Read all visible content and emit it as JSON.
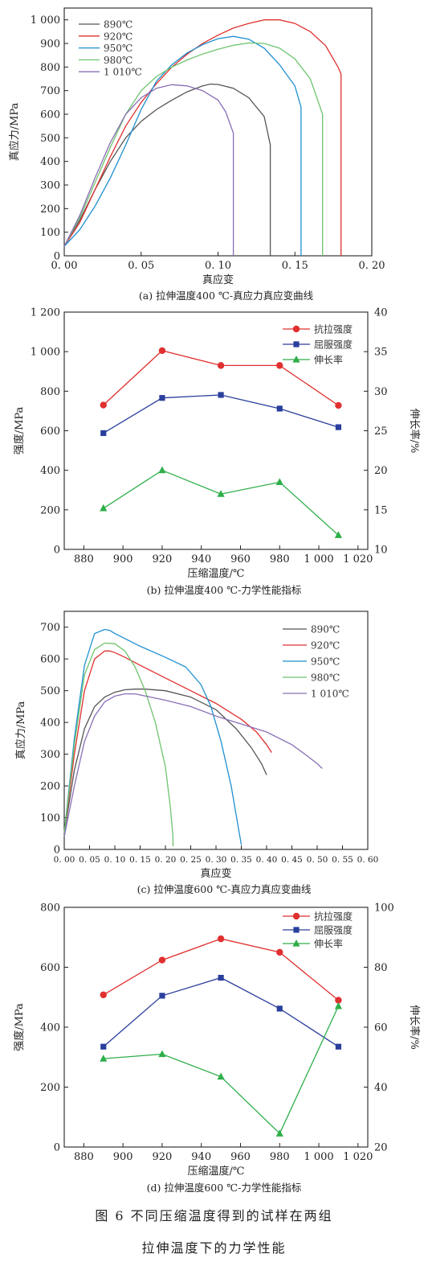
{
  "figure_caption_line1": "图 6 不同压缩温度得到的试样在两组",
  "figure_caption_line2": "拉伸温度下的力学性能",
  "chart_data": [
    {
      "type": "line",
      "caption": "(a) 拉伸温度400 ℃-真应力真应变曲线",
      "xlabel": "真应变",
      "ylabel": "真应力/MPa",
      "xlim": [
        0,
        0.2
      ],
      "ylim": [
        0,
        1050
      ],
      "xticks": [
        0.0,
        0.05,
        0.1,
        0.15,
        0.2
      ],
      "xtick_labels": [
        "0. 00",
        "0. 05",
        "0. 10",
        "0. 15",
        "0. 20"
      ],
      "yticks": [
        0,
        100,
        200,
        300,
        400,
        500,
        600,
        700,
        800,
        900,
        1000
      ],
      "ytick_labels": [
        "0",
        "100",
        "200",
        "300",
        "400",
        "500",
        "600",
        "700",
        "800",
        "900",
        "1 000"
      ],
      "legend_position": "top-left",
      "series": [
        {
          "name": "890℃",
          "color": "#555555",
          "points": [
            [
              0,
              40
            ],
            [
              0.01,
              150
            ],
            [
              0.02,
              280
            ],
            [
              0.03,
              400
            ],
            [
              0.04,
              500
            ],
            [
              0.05,
              570
            ],
            [
              0.06,
              620
            ],
            [
              0.07,
              660
            ],
            [
              0.08,
              695
            ],
            [
              0.09,
              720
            ],
            [
              0.095,
              728
            ],
            [
              0.1,
              726
            ],
            [
              0.11,
              710
            ],
            [
              0.12,
              670
            ],
            [
              0.13,
              590
            ],
            [
              0.134,
              470
            ],
            [
              0.134,
              0
            ]
          ]
        },
        {
          "name": "920℃",
          "color": "#e03030",
          "points": [
            [
              0,
              40
            ],
            [
              0.01,
              140
            ],
            [
              0.02,
              280
            ],
            [
              0.03,
              420
            ],
            [
              0.04,
              550
            ],
            [
              0.05,
              650
            ],
            [
              0.06,
              730
            ],
            [
              0.07,
              800
            ],
            [
              0.08,
              855
            ],
            [
              0.09,
              900
            ],
            [
              0.1,
              935
            ],
            [
              0.11,
              965
            ],
            [
              0.12,
              985
            ],
            [
              0.13,
              1000
            ],
            [
              0.14,
              1000
            ],
            [
              0.15,
              985
            ],
            [
              0.16,
              950
            ],
            [
              0.17,
              890
            ],
            [
              0.178,
              800
            ],
            [
              0.18,
              770
            ],
            [
              0.18,
              0
            ]
          ]
        },
        {
          "name": "950℃",
          "color": "#1f8fd0",
          "points": [
            [
              0,
              40
            ],
            [
              0.01,
              110
            ],
            [
              0.02,
              210
            ],
            [
              0.03,
              330
            ],
            [
              0.04,
              470
            ],
            [
              0.05,
              620
            ],
            [
              0.06,
              740
            ],
            [
              0.07,
              810
            ],
            [
              0.08,
              860
            ],
            [
              0.09,
              895
            ],
            [
              0.1,
              920
            ],
            [
              0.11,
              930
            ],
            [
              0.12,
              918
            ],
            [
              0.13,
              880
            ],
            [
              0.14,
              810
            ],
            [
              0.15,
              720
            ],
            [
              0.154,
              630
            ],
            [
              0.154,
              0
            ]
          ]
        },
        {
          "name": "980℃",
          "color": "#6ec46e",
          "points": [
            [
              0,
              40
            ],
            [
              0.01,
              160
            ],
            [
              0.02,
              310
            ],
            [
              0.03,
              460
            ],
            [
              0.04,
              600
            ],
            [
              0.05,
              700
            ],
            [
              0.06,
              760
            ],
            [
              0.07,
              800
            ],
            [
              0.08,
              830
            ],
            [
              0.09,
              855
            ],
            [
              0.1,
              875
            ],
            [
              0.11,
              892
            ],
            [
              0.12,
              902
            ],
            [
              0.13,
              900
            ],
            [
              0.14,
              880
            ],
            [
              0.15,
              835
            ],
            [
              0.16,
              750
            ],
            [
              0.168,
              600
            ],
            [
              0.168,
              0
            ]
          ]
        },
        {
          "name": "1 010℃",
          "color": "#8a6fb5",
          "points": [
            [
              0,
              40
            ],
            [
              0.01,
              170
            ],
            [
              0.02,
              330
            ],
            [
              0.03,
              480
            ],
            [
              0.04,
              600
            ],
            [
              0.05,
              670
            ],
            [
              0.06,
              710
            ],
            [
              0.07,
              725
            ],
            [
              0.08,
              720
            ],
            [
              0.09,
              700
            ],
            [
              0.1,
              660
            ],
            [
              0.105,
              610
            ],
            [
              0.11,
              520
            ],
            [
              0.11,
              0
            ]
          ]
        }
      ]
    },
    {
      "type": "line",
      "caption": "(b) 拉伸温度400 ℃-力学性能指标",
      "xlabel": "压缩温度/℃",
      "ylabel": "强度/MPa",
      "y2label": "伸长率/%",
      "xlim": [
        870,
        1025
      ],
      "ylim": [
        0,
        1200
      ],
      "y2lim": [
        10,
        40
      ],
      "xticks": [
        880,
        900,
        920,
        940,
        960,
        980,
        1000,
        1020
      ],
      "xtick_labels": [
        "880",
        "900",
        "920",
        "940",
        "960",
        "980",
        "1 000",
        "1 020"
      ],
      "yticks": [
        0,
        200,
        400,
        600,
        800,
        1000,
        1200
      ],
      "ytick_labels": [
        "0",
        "200",
        "400",
        "600",
        "800",
        "1 000",
        "1 200"
      ],
      "y2ticks": [
        10,
        15,
        20,
        25,
        30,
        35,
        40
      ],
      "y2tick_labels": [
        "10",
        "15",
        "20",
        "25",
        "30",
        "35",
        "40"
      ],
      "legend_position": "top-right",
      "x": [
        890,
        920,
        950,
        980,
        1010
      ],
      "series": [
        {
          "name": "抗拉强度",
          "color": "#e03030",
          "marker": "circle",
          "axis": "left",
          "values": [
            730,
            1005,
            930,
            930,
            728
          ]
        },
        {
          "name": "屈服强度",
          "color": "#2a3f9c",
          "marker": "square",
          "axis": "left",
          "values": [
            588,
            766,
            781,
            712,
            618
          ]
        },
        {
          "name": "伸长率",
          "color": "#2fae4a",
          "marker": "triangle",
          "axis": "right",
          "values": [
            15.2,
            20.0,
            17.0,
            18.5,
            11.8
          ]
        }
      ]
    },
    {
      "type": "line",
      "caption": "(c) 拉伸温度600 ℃-真应力真应变曲线",
      "xlabel": "真应变",
      "ylabel": "真应力/MPa",
      "xlim": [
        0,
        0.6
      ],
      "ylim": [
        0,
        750
      ],
      "xticks": [
        0.0,
        0.05,
        0.1,
        0.15,
        0.2,
        0.25,
        0.3,
        0.35,
        0.4,
        0.45,
        0.5,
        0.55,
        0.6
      ],
      "xtick_labels": [
        "0. 00",
        "0. 05",
        "0. 10",
        "0. 15",
        "0. 20",
        "0. 25",
        "0. 30",
        "0. 35",
        "0. 40",
        "0. 45",
        "0. 50",
        "0. 55",
        "0. 60"
      ],
      "yticks": [
        0,
        100,
        200,
        300,
        400,
        500,
        600,
        700
      ],
      "ytick_labels": [
        "0",
        "100",
        "200",
        "300",
        "400",
        "500",
        "600",
        "700"
      ],
      "legend_position": "top-right",
      "series": [
        {
          "name": "890℃",
          "color": "#555555",
          "points": [
            [
              0,
              50
            ],
            [
              0.02,
              250
            ],
            [
              0.04,
              380
            ],
            [
              0.06,
              450
            ],
            [
              0.08,
              480
            ],
            [
              0.1,
              495
            ],
            [
              0.12,
              503
            ],
            [
              0.14,
              505
            ],
            [
              0.16,
              505
            ],
            [
              0.2,
              500
            ],
            [
              0.25,
              480
            ],
            [
              0.3,
              440
            ],
            [
              0.34,
              380
            ],
            [
              0.37,
              320
            ],
            [
              0.39,
              270
            ],
            [
              0.4,
              235
            ]
          ]
        },
        {
          "name": "920℃",
          "color": "#e03030",
          "points": [
            [
              0,
              50
            ],
            [
              0.02,
              300
            ],
            [
              0.04,
              500
            ],
            [
              0.06,
              600
            ],
            [
              0.08,
              625
            ],
            [
              0.09,
              625
            ],
            [
              0.1,
              620
            ],
            [
              0.12,
              605
            ],
            [
              0.15,
              580
            ],
            [
              0.2,
              540
            ],
            [
              0.25,
              500
            ],
            [
              0.3,
              460
            ],
            [
              0.35,
              410
            ],
            [
              0.38,
              370
            ],
            [
              0.4,
              330
            ],
            [
              0.41,
              305
            ]
          ]
        },
        {
          "name": "950℃",
          "color": "#1f8fd0",
          "points": [
            [
              0,
              50
            ],
            [
              0.02,
              350
            ],
            [
              0.04,
              580
            ],
            [
              0.06,
              680
            ],
            [
              0.08,
              693
            ],
            [
              0.09,
              690
            ],
            [
              0.1,
              680
            ],
            [
              0.15,
              640
            ],
            [
              0.2,
              605
            ],
            [
              0.24,
              575
            ],
            [
              0.27,
              520
            ],
            [
              0.29,
              450
            ],
            [
              0.31,
              340
            ],
            [
              0.33,
              200
            ],
            [
              0.345,
              60
            ],
            [
              0.35,
              15
            ]
          ]
        },
        {
          "name": "980℃",
          "color": "#6ec46e",
          "points": [
            [
              0,
              50
            ],
            [
              0.02,
              330
            ],
            [
              0.04,
              550
            ],
            [
              0.06,
              630
            ],
            [
              0.08,
              650
            ],
            [
              0.1,
              648
            ],
            [
              0.12,
              625
            ],
            [
              0.14,
              575
            ],
            [
              0.16,
              500
            ],
            [
              0.18,
              400
            ],
            [
              0.2,
              260
            ],
            [
              0.21,
              130
            ],
            [
              0.215,
              40
            ],
            [
              0.215,
              10
            ]
          ]
        },
        {
          "name": "1 010℃",
          "color": "#8a6fb5",
          "points": [
            [
              0,
              40
            ],
            [
              0.02,
              200
            ],
            [
              0.04,
              340
            ],
            [
              0.06,
              420
            ],
            [
              0.08,
              465
            ],
            [
              0.1,
              483
            ],
            [
              0.12,
              490
            ],
            [
              0.14,
              490
            ],
            [
              0.2,
              470
            ],
            [
              0.25,
              450
            ],
            [
              0.3,
              420
            ],
            [
              0.35,
              395
            ],
            [
              0.4,
              370
            ],
            [
              0.45,
              330
            ],
            [
              0.48,
              295
            ],
            [
              0.5,
              270
            ],
            [
              0.51,
              255
            ]
          ]
        }
      ]
    },
    {
      "type": "line",
      "caption": "(d) 拉伸温度600 ℃-力学性能指标",
      "xlabel": "压缩温度/℃",
      "ylabel": "强度/MPa",
      "y2label": "伸长率/%",
      "xlim": [
        870,
        1025
      ],
      "ylim": [
        0,
        800
      ],
      "y2lim": [
        20,
        100
      ],
      "xticks": [
        880,
        900,
        920,
        940,
        960,
        980,
        1000,
        1020
      ],
      "xtick_labels": [
        "880",
        "900",
        "920",
        "940",
        "960",
        "980",
        "1 000",
        "1 020"
      ],
      "yticks": [
        0,
        200,
        400,
        600,
        800
      ],
      "ytick_labels": [
        "0",
        "200",
        "400",
        "600",
        "800"
      ],
      "y2ticks": [
        20,
        40,
        60,
        80,
        100
      ],
      "y2tick_labels": [
        "20",
        "40",
        "60",
        "80",
        "100"
      ],
      "legend_position": "top-right",
      "x": [
        890,
        920,
        950,
        980,
        1010
      ],
      "series": [
        {
          "name": "抗拉强度",
          "color": "#e03030",
          "marker": "circle",
          "axis": "left",
          "values": [
            508,
            624,
            695,
            650,
            490
          ]
        },
        {
          "name": "屈服强度",
          "color": "#2a3f9c",
          "marker": "square",
          "axis": "left",
          "values": [
            335,
            505,
            565,
            462,
            335
          ]
        },
        {
          "name": "伸长率",
          "color": "#2fae4a",
          "marker": "triangle",
          "axis": "right",
          "values": [
            49.5,
            51,
            43.5,
            24.5,
            67
          ]
        }
      ]
    }
  ]
}
